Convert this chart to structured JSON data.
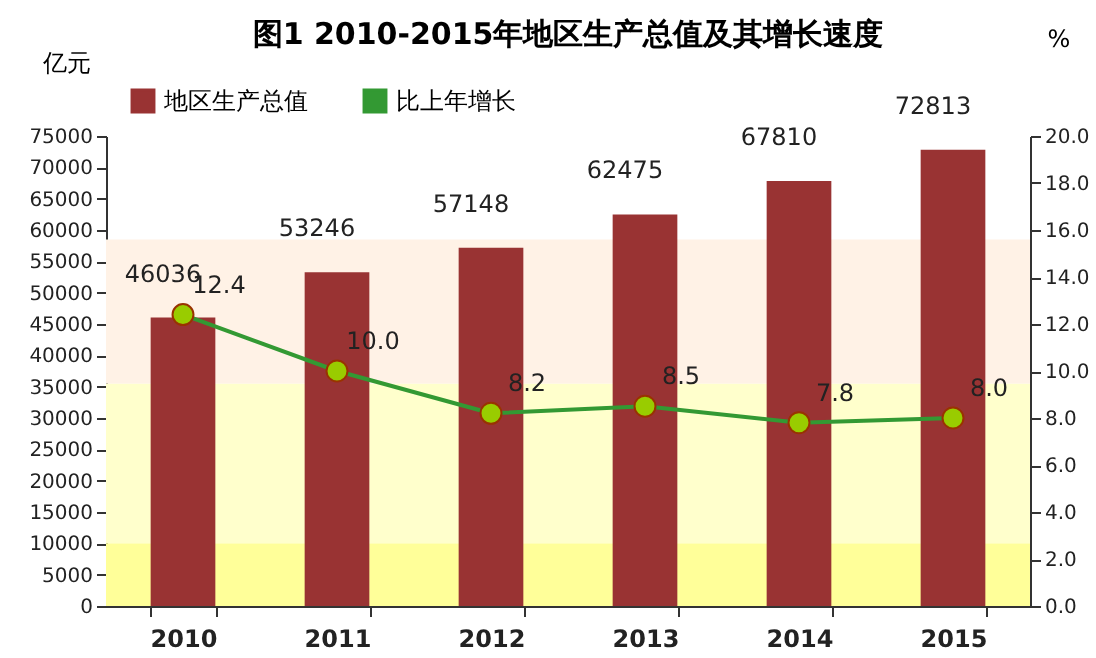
{
  "chart_data": {
    "type": "bar",
    "title": "图1  2010-2015年地区生产总值及其增长速度",
    "ylabel": "亿元",
    "y2label": "%",
    "categories": [
      "2010",
      "2011",
      "2012",
      "2013",
      "2014",
      "2015"
    ],
    "series": [
      {
        "name": "地区生产总值",
        "color": "#993333",
        "values": [
          46036,
          53246,
          57148,
          62475,
          67810,
          72813
        ]
      },
      {
        "name": "比上年增长",
        "type": "line",
        "axis": "y2",
        "color": "#339933",
        "values": [
          12.4,
          10.0,
          8.2,
          8.5,
          7.8,
          8.0
        ],
        "value_labels": [
          "12.4",
          "10.0",
          "8.2",
          "8.5",
          "7.8",
          "8.0"
        ]
      }
    ],
    "ylim": [
      0,
      75000
    ],
    "yticks": [
      0,
      5000,
      10000,
      15000,
      20000,
      25000,
      30000,
      35000,
      40000,
      45000,
      50000,
      55000,
      60000,
      65000,
      70000,
      75000
    ],
    "y2lim": [
      0,
      20
    ],
    "y2ticks": [
      {
        "value": 0,
        "label": "0.0"
      },
      {
        "value": 2,
        "label": "2.0"
      },
      {
        "value": 4,
        "label": "4.0"
      },
      {
        "value": 6,
        "label": "6.0"
      },
      {
        "value": 8,
        "label": "8.0"
      },
      {
        "value": 10,
        "label": "10.0"
      },
      {
        "value": 12,
        "label": "12.0"
      },
      {
        "value": 14,
        "label": "14.0"
      },
      {
        "value": 16,
        "label": "16.0"
      },
      {
        "value": 18,
        "label": "18.0"
      },
      {
        "value": 20,
        "label": "20.0"
      }
    ],
    "bands": [
      {
        "axis": "y",
        "from": 0,
        "to": 10000,
        "color": "#ffff99"
      },
      {
        "axis": "y",
        "from": 10000,
        "to": 35500,
        "color": "#ffffcc"
      },
      {
        "axis": "y",
        "from": 35500,
        "to": 58500,
        "color": "#fff2e6"
      }
    ],
    "data_labels": true,
    "marker": "circle",
    "legend": "top left",
    "grid": false
  }
}
